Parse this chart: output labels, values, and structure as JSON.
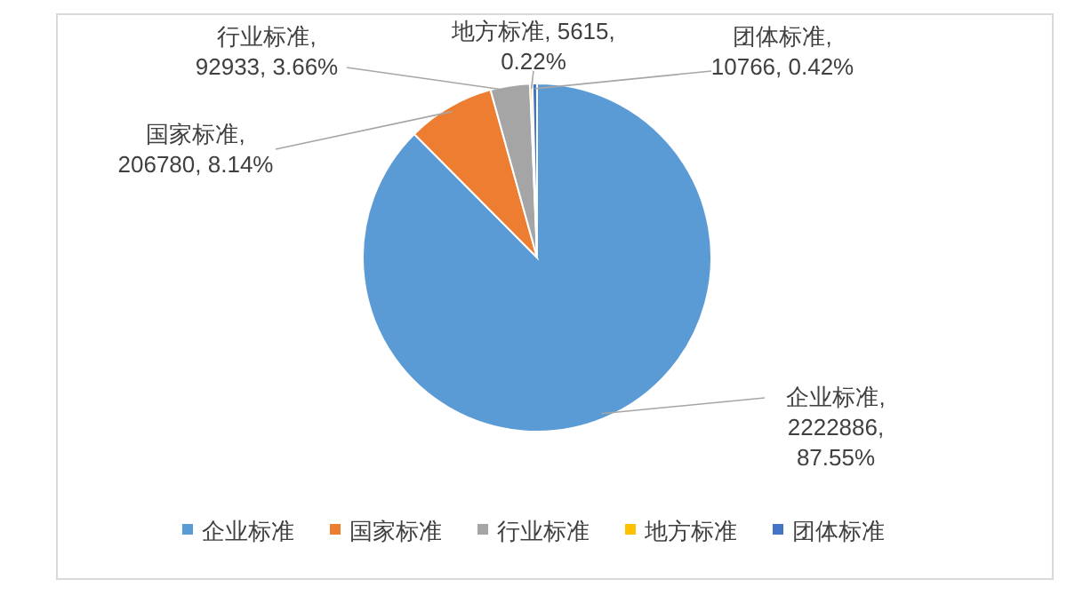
{
  "chart_data": {
    "type": "pie",
    "categories": [
      "企业标准",
      "国家标准",
      "行业标准",
      "地方标准",
      "团体标准"
    ],
    "values": [
      2222886,
      206780,
      92933,
      5615,
      10766
    ],
    "colors": [
      "#5b9bd5",
      "#ed7d31",
      "#a5a5a5",
      "#ffc000",
      "#4472c4"
    ],
    "value_labels": [
      "企业标准, 2222886, 87.55%",
      "国家标准, 206780, 8.14%",
      "行业标准, 92933, 3.66%",
      "地方标准, 5615, 0.22%",
      "团体标准, 10766, 0.42%"
    ],
    "legend": "bottom"
  }
}
